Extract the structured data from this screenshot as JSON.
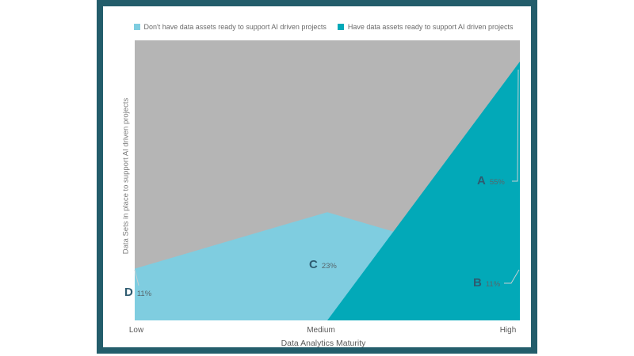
{
  "colors": {
    "frame": "#235d6b",
    "gray_area": "#b5b5b5",
    "dont_have": "#7fcde0",
    "have": "#02a9b8",
    "leader_line": "#c4cfd3",
    "letter_text": "#2e5b70",
    "pct_text": "#57666c",
    "axis_text": "#595959"
  },
  "legend": {
    "items": [
      {
        "label": "Don't have data assets ready to support AI driven projects",
        "color_key": "dont_have"
      },
      {
        "label": "Have data assets ready to support AI driven projects",
        "color_key": "have"
      }
    ]
  },
  "axes": {
    "x_title": "Data Analytics Maturity",
    "y_title": "Data Sets in place to support AI driven projects",
    "x_ticks": [
      "Low",
      "Medium",
      "High"
    ]
  },
  "chart_data": {
    "type": "area",
    "x_categories": [
      "Low",
      "Medium",
      "High"
    ],
    "series": [
      {
        "name": "Don't have data assets ready to support AI driven projects",
        "values_pct": [
          11,
          23,
          11
        ],
        "color": "#7fcde0"
      },
      {
        "name": "Have data assets ready to support AI driven projects",
        "values_pct": [
          0,
          0,
          55
        ],
        "color": "#02a9b8"
      }
    ],
    "point_labels": [
      {
        "letter": "A",
        "pct": "55%",
        "series": "Have data assets ready to support AI driven projects",
        "x": "High"
      },
      {
        "letter": "B",
        "pct": "11%",
        "series": "Don't have data assets ready to support AI driven projects",
        "x": "High"
      },
      {
        "letter": "C",
        "pct": "23%",
        "series": "Don't have data assets ready to support AI driven projects",
        "x": "Medium"
      },
      {
        "letter": "D",
        "pct": "11%",
        "series": "Don't have data assets ready to support AI driven projects",
        "x": "Low"
      }
    ],
    "background_fill": "remainder shown as gray",
    "legend_position": "top-center",
    "grid": false
  }
}
